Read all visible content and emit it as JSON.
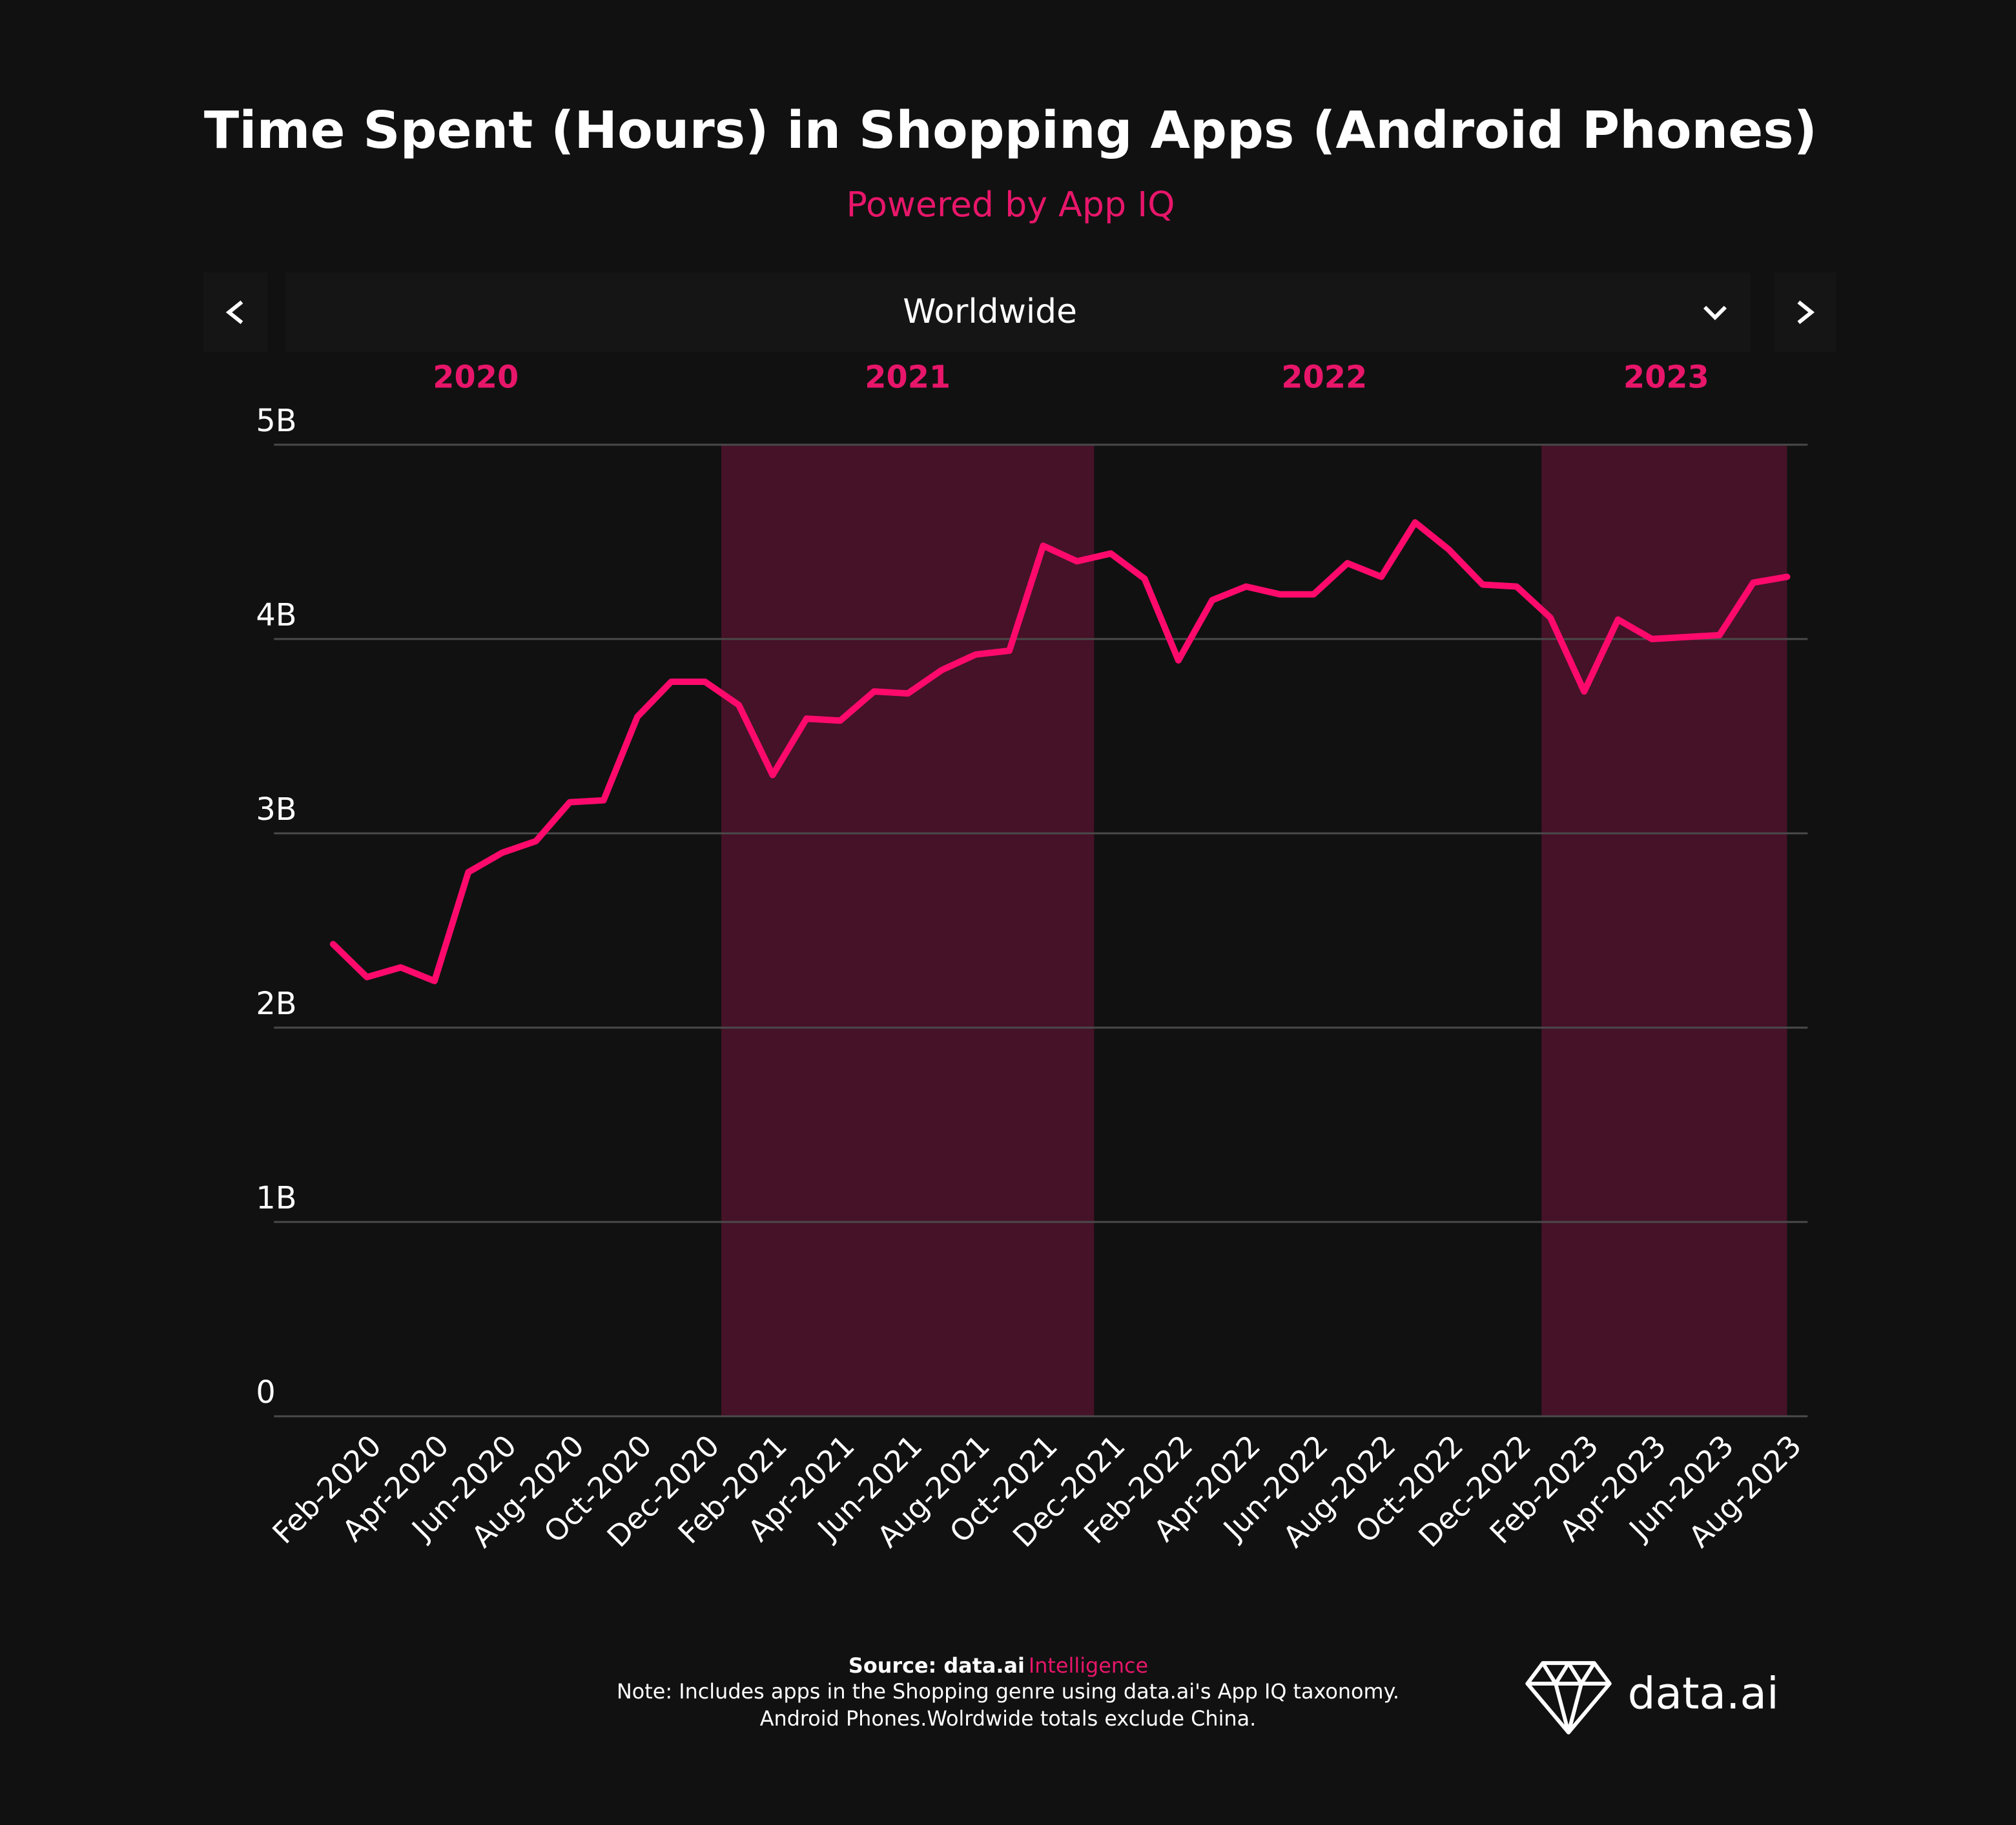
{
  "chart_data": {
    "type": "line",
    "title": "Time Spent (Hours) in Shopping Apps (Android Phones)",
    "subtitle": "Powered by App IQ",
    "region_selector": "Worldwide",
    "year_labels": [
      "2020",
      "2021",
      "2022",
      "2023"
    ],
    "categories": [
      null,
      "Feb-2020",
      null,
      "Apr-2020",
      null,
      "Jun-2020",
      null,
      "Aug-2020",
      null,
      "Oct-2020",
      null,
      "Dec-2020",
      null,
      "Feb-2021",
      null,
      "Apr-2021",
      null,
      "Jun-2021",
      null,
      "Aug-2021",
      null,
      "Oct-2021",
      null,
      "Dec-2021",
      null,
      "Feb-2022",
      null,
      "Apr-2022",
      null,
      "Jun-2022",
      null,
      "Aug-2022",
      null,
      "Oct-2022",
      null,
      "Dec-2022",
      null,
      "Feb-2023",
      null,
      "Apr-2023",
      null,
      "Jun-2023",
      null,
      "Aug-2023"
    ],
    "series": [
      {
        "name": "Time Spent",
        "color": "#ff0a6c",
        "values": [
          2430000000,
          2260000000,
          2310000000,
          2240000000,
          2800000000,
          2900000000,
          2960000000,
          3160000000,
          3170000000,
          3600000000,
          3780000000,
          3780000000,
          3660000000,
          3300000000,
          3590000000,
          3580000000,
          3730000000,
          3720000000,
          3840000000,
          3920000000,
          3940000000,
          4480000000,
          4400000000,
          4440000000,
          4310000000,
          3890000000,
          4200000000,
          4270000000,
          4230000000,
          4230000000,
          4390000000,
          4320000000,
          4600000000,
          4460000000,
          4280000000,
          4270000000,
          4110000000,
          3730000000,
          4100000000,
          4000000000,
          4010000000,
          4020000000,
          4290000000,
          4320000000
        ]
      }
    ],
    "ylim": [
      0,
      5000000000
    ],
    "yticks": [
      0,
      {
        "value": 1000000000,
        "label": "1B"
      },
      {
        "value": 2000000000,
        "label": "2B"
      },
      {
        "value": 3000000000,
        "label": "3B"
      },
      {
        "value": 4000000000,
        "label": "4B"
      },
      {
        "value": 5000000000,
        "label": "5B"
      }
    ],
    "grid": true,
    "source_label": "Source: data.ai",
    "source_highlight": "Intelligence",
    "note_lines": [
      "Note: Includes apps in the Shopping genre using data.ai's App IQ taxonomy.",
      "Android Phones.Wolrdwide totals exclude China."
    ],
    "logo_text": "data.ai"
  }
}
